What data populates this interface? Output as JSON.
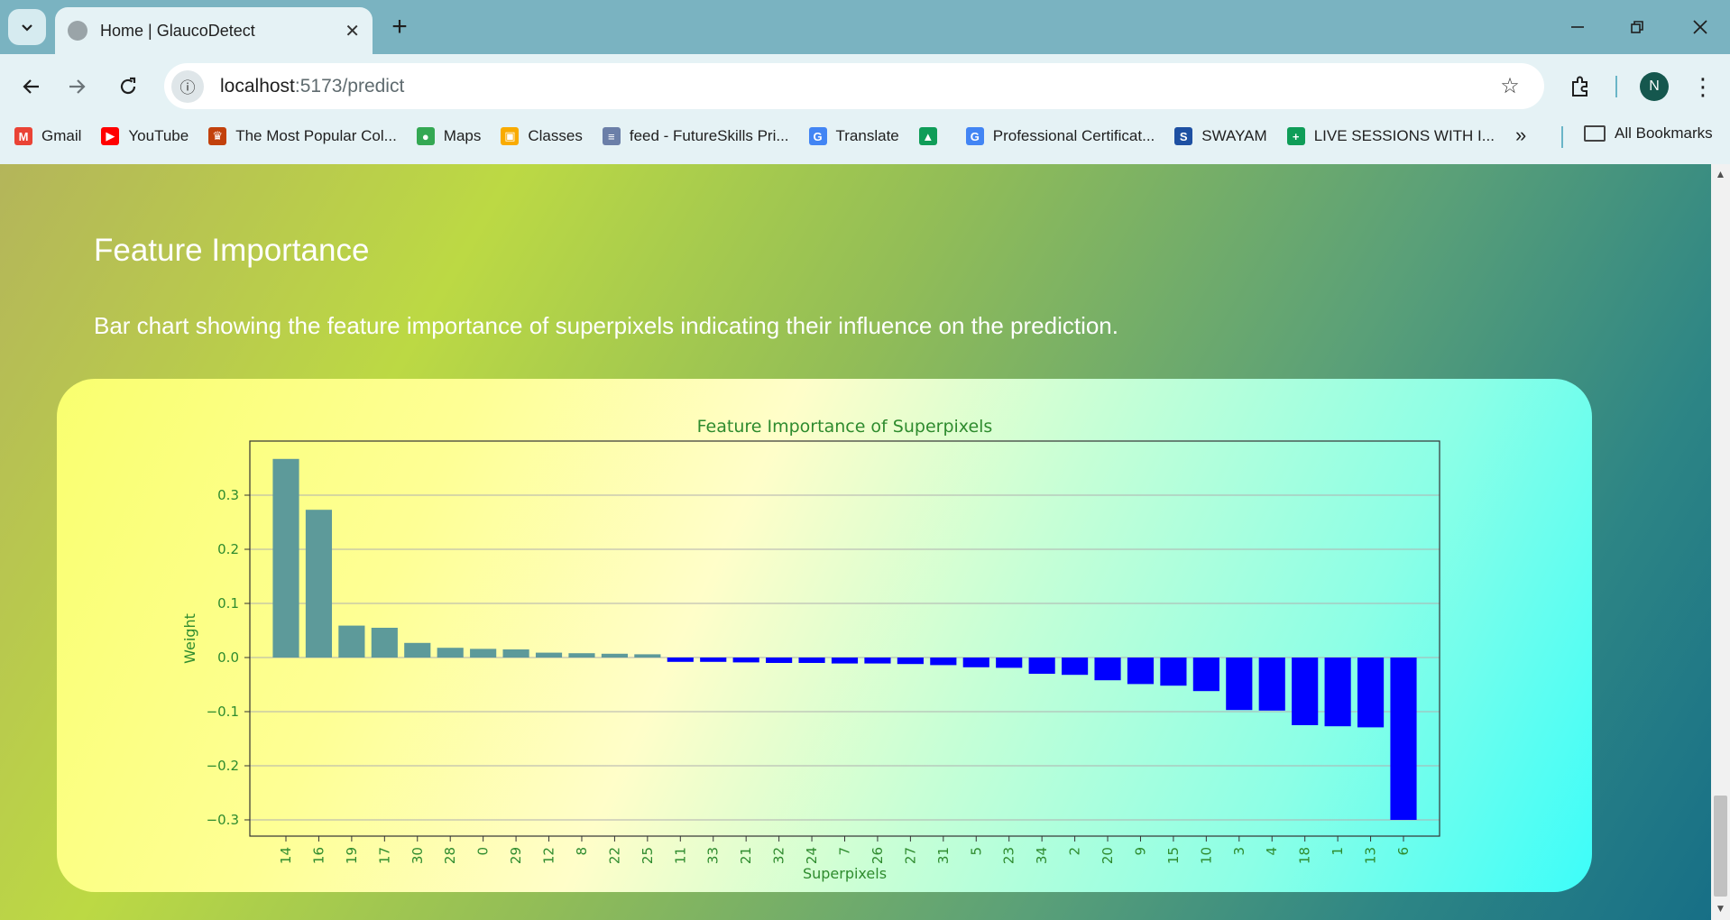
{
  "browser": {
    "tab_title": "Home | GlaucoDetect",
    "url_host": "localhost",
    "url_path": ":5173/predict",
    "profile_initial": "N",
    "bookmarks": [
      {
        "label": "Gmail",
        "icon": "gmail-icon",
        "color": "#ea4335"
      },
      {
        "label": "YouTube",
        "icon": "youtube-icon",
        "color": "#ff0000"
      },
      {
        "label": "The Most Popular Col...",
        "icon": "popular-icon",
        "color": "#c2410c"
      },
      {
        "label": "Maps",
        "icon": "maps-icon",
        "color": "#34a853"
      },
      {
        "label": "Classes",
        "icon": "classroom-icon",
        "color": "#f9ab00"
      },
      {
        "label": "feed - FutureSkills Pri...",
        "icon": "futureskills-icon",
        "color": "#6b7fa8"
      },
      {
        "label": "Translate",
        "icon": "translate-icon",
        "color": "#4285f4"
      },
      {
        "label": "",
        "icon": "drive-icon",
        "color": "#0f9d58"
      },
      {
        "label": "Professional Certificat...",
        "icon": "google-icon",
        "color": "#4285f4"
      },
      {
        "label": "SWAYAM",
        "icon": "swayam-icon",
        "color": "#1e50a2"
      },
      {
        "label": "LIVE SESSIONS WITH I...",
        "icon": "sheets-icon",
        "color": "#0f9d58"
      }
    ],
    "more_bookmarks": "»",
    "all_bookmarks": "All Bookmarks"
  },
  "page": {
    "heading": "Feature Importance",
    "description": "Bar chart showing the feature importance of superpixels indicating their influence on the prediction."
  },
  "chart_data": {
    "type": "bar",
    "title": "Feature Importance of Superpixels",
    "xlabel": "Superpixels",
    "ylabel": "Weight",
    "categories": [
      "14",
      "16",
      "19",
      "17",
      "30",
      "28",
      "0",
      "29",
      "12",
      "8",
      "22",
      "25",
      "11",
      "33",
      "21",
      "32",
      "24",
      "7",
      "26",
      "27",
      "31",
      "5",
      "23",
      "34",
      "2",
      "20",
      "9",
      "15",
      "10",
      "3",
      "4",
      "18",
      "1",
      "13",
      "6"
    ],
    "values": [
      0.367,
      0.273,
      0.059,
      0.055,
      0.027,
      0.018,
      0.016,
      0.015,
      0.009,
      0.008,
      0.007,
      0.006,
      -0.008,
      -0.008,
      -0.009,
      -0.01,
      -0.01,
      -0.011,
      -0.011,
      -0.012,
      -0.014,
      -0.018,
      -0.019,
      -0.03,
      -0.032,
      -0.042,
      -0.049,
      -0.052,
      -0.062,
      -0.097,
      -0.098,
      -0.125,
      -0.127,
      -0.129,
      -0.3
    ],
    "yticks": [
      -0.3,
      -0.2,
      -0.1,
      0.0,
      0.1,
      0.2,
      0.3
    ],
    "ylim": [
      -0.33,
      0.4
    ],
    "grid": "horizontal",
    "positive_color": "#5d9a9a",
    "negative_color": "#0000ff",
    "text_color": "#2e8b2e"
  }
}
